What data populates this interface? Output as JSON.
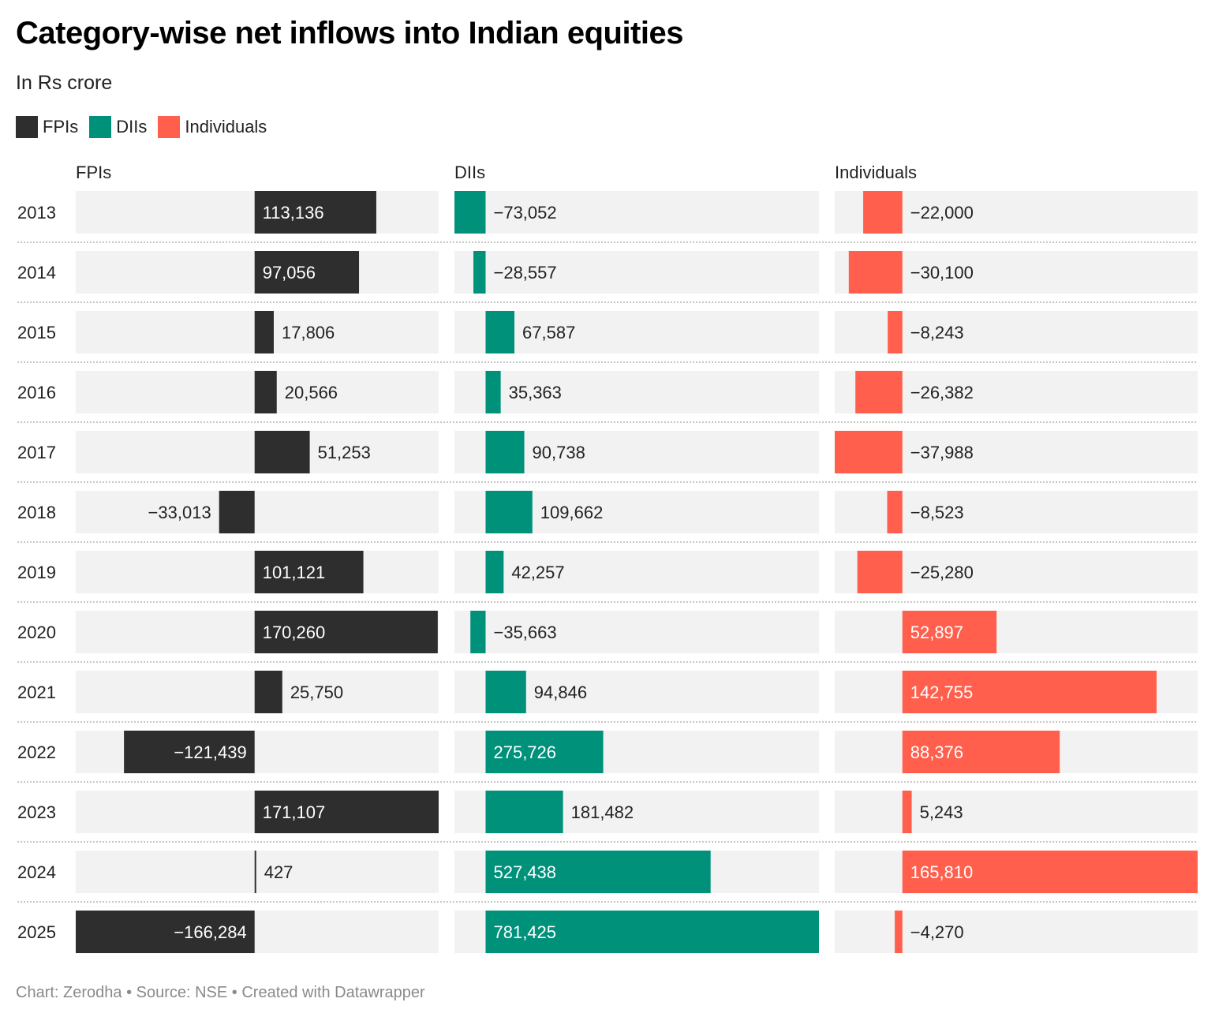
{
  "title": "Category-wise net inflows into Indian equities",
  "subtitle": "In Rs crore",
  "footer": "Chart: Zerodha  • Source: NSE • Created with Datawrapper",
  "chart_data": {
    "type": "bar",
    "orientation": "horizontal",
    "title": "Category-wise net inflows into Indian equities",
    "subtitle": "In Rs crore",
    "categories": [
      "2013",
      "2014",
      "2015",
      "2016",
      "2017",
      "2018",
      "2019",
      "2020",
      "2021",
      "2022",
      "2023",
      "2024",
      "2025"
    ],
    "series": [
      {
        "name": "FPIs",
        "color": "#2e2e2e",
        "values": [
          113136,
          97056,
          17806,
          20566,
          51253,
          -33013,
          101121,
          170260,
          25750,
          -121439,
          171107,
          427,
          -166284
        ]
      },
      {
        "name": "DIIs",
        "color": "#00917a",
        "values": [
          -73052,
          -28557,
          67587,
          35363,
          90738,
          109662,
          42257,
          -35663,
          94846,
          275726,
          181482,
          527438,
          781425
        ]
      },
      {
        "name": "Individuals",
        "color": "#ff5f4c",
        "values": [
          -22000,
          -30100,
          -8243,
          -26382,
          -37988,
          -8523,
          -25280,
          52897,
          142755,
          88376,
          5243,
          165810,
          -4270
        ]
      }
    ],
    "legend": "top-left",
    "grid": false
  }
}
